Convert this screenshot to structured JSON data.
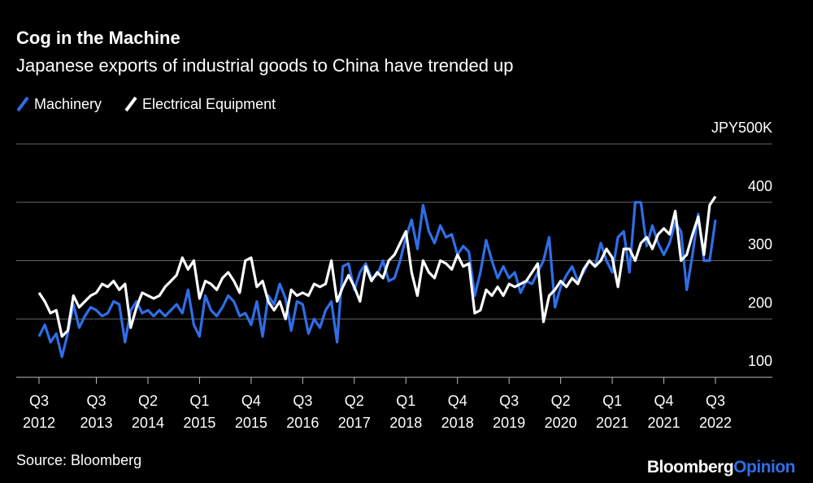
{
  "chart_data": {
    "type": "line",
    "title": "Cog in the Machine",
    "subtitle": "Japanese exports of industrial goods to China have trended up",
    "source": "Source: Bloomberg",
    "logo": [
      "Bloomberg",
      "Opinion"
    ],
    "categories": [
      "Q3\n2012",
      null,
      null,
      null,
      null,
      null,
      null,
      null,
      null,
      null,
      "Q3\n2013",
      null,
      null,
      null,
      null,
      null,
      null,
      null,
      null,
      "Q2\n2014",
      null,
      null,
      null,
      null,
      null,
      null,
      null,
      null,
      "Q1\n2015",
      null,
      null,
      null,
      null,
      null,
      null,
      null,
      null,
      "Q4\n2015",
      null,
      null,
      null,
      null,
      null,
      null,
      null,
      null,
      "Q3\n2016",
      null,
      null,
      null,
      null,
      null,
      null,
      null,
      null,
      "Q2\n2017",
      null,
      null,
      null,
      null,
      null,
      null,
      null,
      null,
      "Q1\n2018",
      null,
      null,
      null,
      null,
      null,
      null,
      null,
      null,
      "Q4\n2018",
      null,
      null,
      null,
      null,
      null,
      null,
      null,
      null,
      "Q3\n2019",
      null,
      null,
      null,
      null,
      null,
      null,
      null,
      null,
      "Q2\n2020",
      null,
      null,
      null,
      null,
      null,
      null,
      null,
      null,
      "Q1\n2021",
      null,
      null,
      null,
      null,
      null,
      null,
      null,
      null,
      "Q4\n2021",
      null,
      null,
      null,
      null,
      null,
      null,
      null,
      null,
      "Q3\n2022"
    ],
    "series": [
      {
        "name": "Machinery",
        "color": "#2f6ee8",
        "values": [
          170,
          190,
          160,
          175,
          135,
          175,
          225,
          185,
          205,
          220,
          215,
          205,
          210,
          230,
          225,
          160,
          215,
          230,
          210,
          215,
          205,
          215,
          205,
          215,
          225,
          210,
          250,
          190,
          170,
          240,
          215,
          205,
          220,
          240,
          230,
          205,
          210,
          190,
          230,
          170,
          240,
          225,
          260,
          235,
          180,
          230,
          225,
          175,
          200,
          185,
          215,
          230,
          160,
          290,
          295,
          250,
          280,
          295,
          270,
          275,
          300,
          265,
          270,
          300,
          340,
          370,
          320,
          395,
          350,
          330,
          360,
          340,
          345,
          310,
          325,
          315,
          240,
          280,
          335,
          300,
          270,
          290,
          270,
          280,
          245,
          265,
          260,
          280,
          300,
          340,
          220,
          255,
          275,
          290,
          265,
          280,
          300,
          290,
          330,
          300,
          280,
          340,
          350,
          280,
          400,
          400,
          325,
          360,
          330,
          310,
          330,
          365,
          350,
          250,
          310,
          380,
          300,
          300,
          370
        ]
      },
      {
        "name": "Electrical Equipment",
        "color": "#ffffff",
        "values": [
          245,
          230,
          210,
          215,
          170,
          180,
          240,
          220,
          230,
          240,
          245,
          260,
          255,
          265,
          250,
          260,
          185,
          220,
          245,
          240,
          235,
          240,
          255,
          265,
          275,
          305,
          285,
          300,
          235,
          265,
          260,
          250,
          270,
          280,
          265,
          245,
          300,
          305,
          255,
          265,
          230,
          215,
          230,
          200,
          250,
          240,
          245,
          240,
          260,
          255,
          260,
          300,
          230,
          255,
          275,
          255,
          230,
          290,
          265,
          280,
          270,
          300,
          310,
          330,
          350,
          280,
          240,
          300,
          280,
          270,
          300,
          295,
          285,
          310,
          290,
          295,
          210,
          215,
          250,
          240,
          255,
          240,
          260,
          255,
          260,
          265,
          280,
          295,
          195,
          240,
          250,
          265,
          255,
          270,
          260,
          285,
          300,
          290,
          300,
          320,
          305,
          255,
          320,
          320,
          300,
          330,
          340,
          320,
          345,
          355,
          345,
          385,
          300,
          310,
          345,
          375,
          310,
          395,
          410
        ]
      }
    ],
    "ylim": [
      100,
      500
    ],
    "yticks": [
      100,
      200,
      300,
      400,
      {
        "value": 500,
        "label": "JPY500K"
      }
    ],
    "grid": true
  }
}
